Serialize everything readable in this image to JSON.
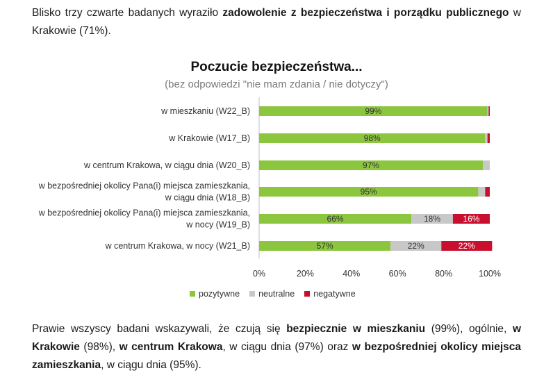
{
  "intro": {
    "t1": "Blisko trzy czwarte badanych wyraziło ",
    "b1": "zadowolenie z bezpieczeństwa i porządku publicznego",
    "t2": " w Krakowie (71%)."
  },
  "chart_data": {
    "type": "bar",
    "orientation": "horizontal",
    "stacked": true,
    "title": "Poczucie bezpieczeństwa...",
    "subtitle": "(bez odpowiedzi \"nie mam zdania / nie dotyczy\")",
    "categories": [
      [
        "w mieszkaniu (W22_B)"
      ],
      [
        "w Krakowie (W17_B)"
      ],
      [
        "w centrum Krakowa, w ciągu dnia (W20_B)"
      ],
      [
        "w bezpośredniej okolicy Pana(i) miejsca zamieszkania,",
        "w ciągu dnia (W18_B)"
      ],
      [
        "w bezpośredniej okolicy Pana(i) miejsca zamieszkania,",
        "w nocy (W19_B)"
      ],
      [
        "w centrum Krakowa, w nocy (W21_B)"
      ]
    ],
    "series": [
      {
        "name": "pozytywne",
        "color": "#8cc63f",
        "values": [
          99,
          98,
          97,
          95,
          66,
          57
        ],
        "labels": [
          "99%",
          "98%",
          "97%",
          "95%",
          "66%",
          "57%"
        ]
      },
      {
        "name": "neutralne",
        "color": "#c8c8c8",
        "values": [
          0.5,
          1,
          3,
          3,
          18,
          22
        ],
        "labels": [
          "",
          "",
          "",
          "",
          "18%",
          "22%"
        ]
      },
      {
        "name": "negatywne",
        "color": "#c8102e",
        "values": [
          0.5,
          1,
          0,
          2,
          16,
          22
        ],
        "labels": [
          "",
          "",
          "",
          "",
          "16%",
          "22%"
        ]
      }
    ],
    "xlim": [
      0,
      100
    ],
    "ticks": [
      "0%",
      "20%",
      "40%",
      "60%",
      "80%",
      "100%"
    ],
    "tick_values": [
      0,
      20,
      40,
      60,
      80,
      100
    ],
    "grid": false,
    "legend_position": "bottom"
  },
  "outro": {
    "t1": "Prawie wszyscy badani wskazywali, że czują się ",
    "b1": "bezpiecznie w mieszkaniu",
    "t2": " (99%), ogólnie, ",
    "b2": "w Krakowie",
    "t3": " (98%), ",
    "b3": "w centrum Krakowa",
    "t4": ", w ciągu dnia (97%) oraz ",
    "b4": "w bezpośredniej okolicy miejsca zamieszkania",
    "t5": ", w ciągu dnia (95%)."
  }
}
